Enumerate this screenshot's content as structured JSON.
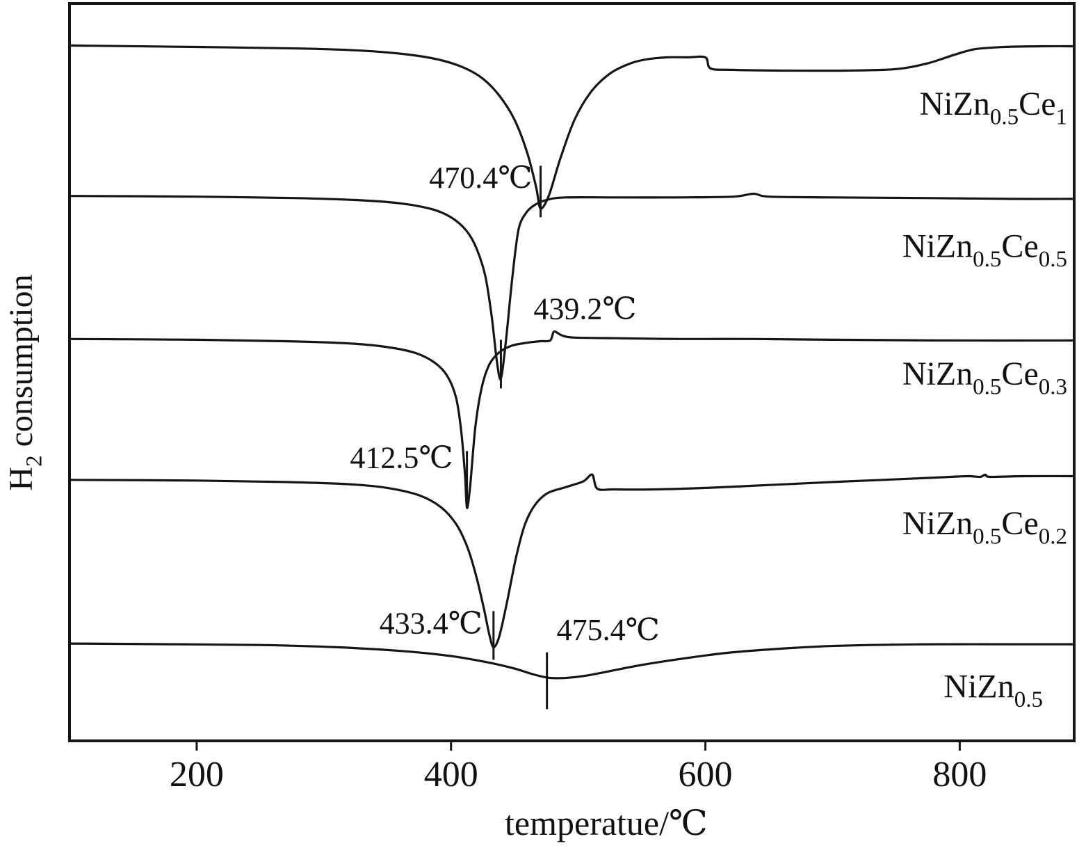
{
  "chart_data": {
    "type": "line",
    "title": "",
    "xlabel": "temperatue/℃",
    "ylabel": "H2 consumption",
    "ylabel_parts": [
      {
        "text": "H"
      },
      {
        "text": "2",
        "sub": true
      },
      {
        "text": " consumption"
      }
    ],
    "xlim": [
      100,
      890
    ],
    "ylim": [
      0,
      1000
    ],
    "x_ticks": [
      200,
      400,
      600,
      800
    ],
    "x_tick_labels": [
      "200",
      "400",
      "600",
      "800"
    ],
    "grid": false,
    "legend_position": "inline-right",
    "line_color": "#151515",
    "background": "#ffffff",
    "series": [
      {
        "name": "NiZn0.5Ce1",
        "label_parts": [
          {
            "text": "NiZn"
          },
          {
            "text": "0.5",
            "sub": true
          },
          {
            "text": "Ce"
          },
          {
            "text": "1",
            "sub": true
          }
        ],
        "label_v": 849,
        "label_pad": 10,
        "peak_temp_c": 470.4,
        "points": [
          [
            100,
            943
          ],
          [
            200,
            941
          ],
          [
            280,
            939
          ],
          [
            330,
            936
          ],
          [
            365,
            931
          ],
          [
            390,
            924
          ],
          [
            410,
            913
          ],
          [
            425,
            898
          ],
          [
            438,
            875
          ],
          [
            450,
            842
          ],
          [
            460,
            797
          ],
          [
            467,
            750
          ],
          [
            470.4,
            722
          ],
          [
            477,
            740
          ],
          [
            486,
            790
          ],
          [
            497,
            842
          ],
          [
            510,
            880
          ],
          [
            525,
            905
          ],
          [
            540,
            918
          ],
          [
            553,
            924
          ],
          [
            570,
            927
          ],
          [
            586,
            927
          ],
          [
            600,
            927
          ],
          [
            604,
            912
          ],
          [
            620,
            910
          ],
          [
            660,
            909
          ],
          [
            710,
            909
          ],
          [
            750,
            911
          ],
          [
            775,
            919
          ],
          [
            795,
            930
          ],
          [
            812,
            938
          ],
          [
            835,
            941
          ],
          [
            865,
            942
          ],
          [
            890,
            942
          ]
        ]
      },
      {
        "name": "NiZn0.5Ce0.5",
        "label_parts": [
          {
            "text": "NiZn"
          },
          {
            "text": "0.5",
            "sub": true
          },
          {
            "text": "Ce"
          },
          {
            "text": "0.5",
            "sub": true
          }
        ],
        "label_v": 656,
        "label_pad": 10,
        "peak_temp_c": 439.2,
        "points": [
          [
            100,
            739
          ],
          [
            200,
            738
          ],
          [
            280,
            736
          ],
          [
            330,
            733
          ],
          [
            360,
            729
          ],
          [
            385,
            721
          ],
          [
            400,
            710
          ],
          [
            412,
            692
          ],
          [
            420,
            668
          ],
          [
            427,
            630
          ],
          [
            432,
            575
          ],
          [
            436,
            515
          ],
          [
            439.2,
            491
          ],
          [
            443,
            540
          ],
          [
            448,
            625
          ],
          [
            453,
            693
          ],
          [
            459,
            716
          ],
          [
            466,
            727
          ],
          [
            476,
            734
          ],
          [
            490,
            737
          ],
          [
            530,
            737
          ],
          [
            580,
            737
          ],
          [
            622,
            738
          ],
          [
            638,
            742
          ],
          [
            650,
            738
          ],
          [
            700,
            737
          ],
          [
            780,
            736
          ],
          [
            840,
            735
          ],
          [
            890,
            735
          ]
        ]
      },
      {
        "name": "NiZn0.5Ce0.3",
        "label_parts": [
          {
            "text": "NiZn"
          },
          {
            "text": "0.5",
            "sub": true
          },
          {
            "text": "Ce"
          },
          {
            "text": "0.3",
            "sub": true
          }
        ],
        "label_v": 483,
        "label_pad": 10,
        "peak_temp_c": 412.5,
        "points": [
          [
            100,
            545
          ],
          [
            200,
            544
          ],
          [
            270,
            542
          ],
          [
            320,
            539
          ],
          [
            350,
            534
          ],
          [
            372,
            526
          ],
          [
            387,
            513
          ],
          [
            397,
            495
          ],
          [
            404,
            465
          ],
          [
            408,
            420
          ],
          [
            411,
            360
          ],
          [
            412.5,
            316
          ],
          [
            415,
            345
          ],
          [
            419,
            424
          ],
          [
            424,
            478
          ],
          [
            430,
            510
          ],
          [
            438,
            527
          ],
          [
            448,
            536
          ],
          [
            460,
            540
          ],
          [
            470,
            542
          ],
          [
            478,
            543
          ],
          [
            481,
            555
          ],
          [
            487,
            550
          ],
          [
            496,
            547
          ],
          [
            530,
            546
          ],
          [
            580,
            545
          ],
          [
            640,
            545
          ],
          [
            700,
            544
          ],
          [
            780,
            543
          ],
          [
            890,
            543
          ]
        ]
      },
      {
        "name": "NiZn0.5Ce0.2",
        "label_parts": [
          {
            "text": "NiZn"
          },
          {
            "text": "0.5",
            "sub": true
          },
          {
            "text": "Ce"
          },
          {
            "text": "0.2",
            "sub": true
          }
        ],
        "label_v": 280,
        "label_pad": 10,
        "peak_temp_c": 433.4,
        "points": [
          [
            100,
            354
          ],
          [
            200,
            353
          ],
          [
            270,
            351
          ],
          [
            320,
            348
          ],
          [
            350,
            343
          ],
          [
            375,
            333
          ],
          [
            392,
            317
          ],
          [
            404,
            294
          ],
          [
            413,
            262
          ],
          [
            420,
            222
          ],
          [
            426,
            178
          ],
          [
            430,
            145
          ],
          [
            433.4,
            127
          ],
          [
            438,
            142
          ],
          [
            444,
            188
          ],
          [
            451,
            248
          ],
          [
            458,
            293
          ],
          [
            466,
            320
          ],
          [
            476,
            336
          ],
          [
            490,
            344
          ],
          [
            504,
            352
          ],
          [
            511,
            361
          ],
          [
            515,
            342
          ],
          [
            528,
            341
          ],
          [
            560,
            341
          ],
          [
            600,
            343
          ],
          [
            650,
            347
          ],
          [
            700,
            351
          ],
          [
            740,
            354
          ],
          [
            780,
            357
          ],
          [
            806,
            359
          ],
          [
            816,
            358
          ],
          [
            820,
            361
          ],
          [
            824,
            358
          ],
          [
            850,
            359
          ],
          [
            890,
            359
          ]
        ]
      },
      {
        "name": "NiZn0.5",
        "label_parts": [
          {
            "text": "NiZn"
          },
          {
            "text": "0.5",
            "sub": true
          }
        ],
        "label_v": 59,
        "label_pad": 45,
        "peak_temp_c": 475.4,
        "points": [
          [
            100,
            132
          ],
          [
            180,
            131
          ],
          [
            250,
            130
          ],
          [
            310,
            127
          ],
          [
            360,
            122
          ],
          [
            400,
            115
          ],
          [
            430,
            106
          ],
          [
            450,
            98
          ],
          [
            463,
            91
          ],
          [
            475,
            86
          ],
          [
            483,
            85
          ],
          [
            495,
            86
          ],
          [
            508,
            89
          ],
          [
            526,
            95
          ],
          [
            550,
            103
          ],
          [
            580,
            111
          ],
          [
            615,
            119
          ],
          [
            650,
            124
          ],
          [
            690,
            128
          ],
          [
            730,
            130
          ],
          [
            780,
            131
          ],
          [
            840,
            131
          ],
          [
            890,
            131
          ]
        ]
      }
    ],
    "annotations": [
      {
        "label": "470.4℃",
        "temp": 470.4,
        "tick_v": [
          710,
          780
        ],
        "anchor": "end",
        "offset": [
          -12,
          32
        ]
      },
      {
        "label": "439.2℃",
        "temp": 439.2,
        "tick_v": [
          478,
          544
        ],
        "anchor": "start",
        "offset": [
          47,
          -30
        ]
      },
      {
        "label": "412.5℃",
        "temp": 412.5,
        "tick_v": [
          318,
          393
        ],
        "anchor": "end",
        "offset": [
          -20,
          24
        ]
      },
      {
        "label": "433.4℃",
        "temp": 433.4,
        "tick_v": [
          110,
          176
        ],
        "anchor": "end",
        "offset": [
          -16,
          32
        ]
      },
      {
        "label": "475.4℃",
        "temp": 475.4,
        "tick_v": [
          43,
          120
        ],
        "anchor": "start",
        "offset": [
          14,
          -18
        ]
      }
    ]
  }
}
